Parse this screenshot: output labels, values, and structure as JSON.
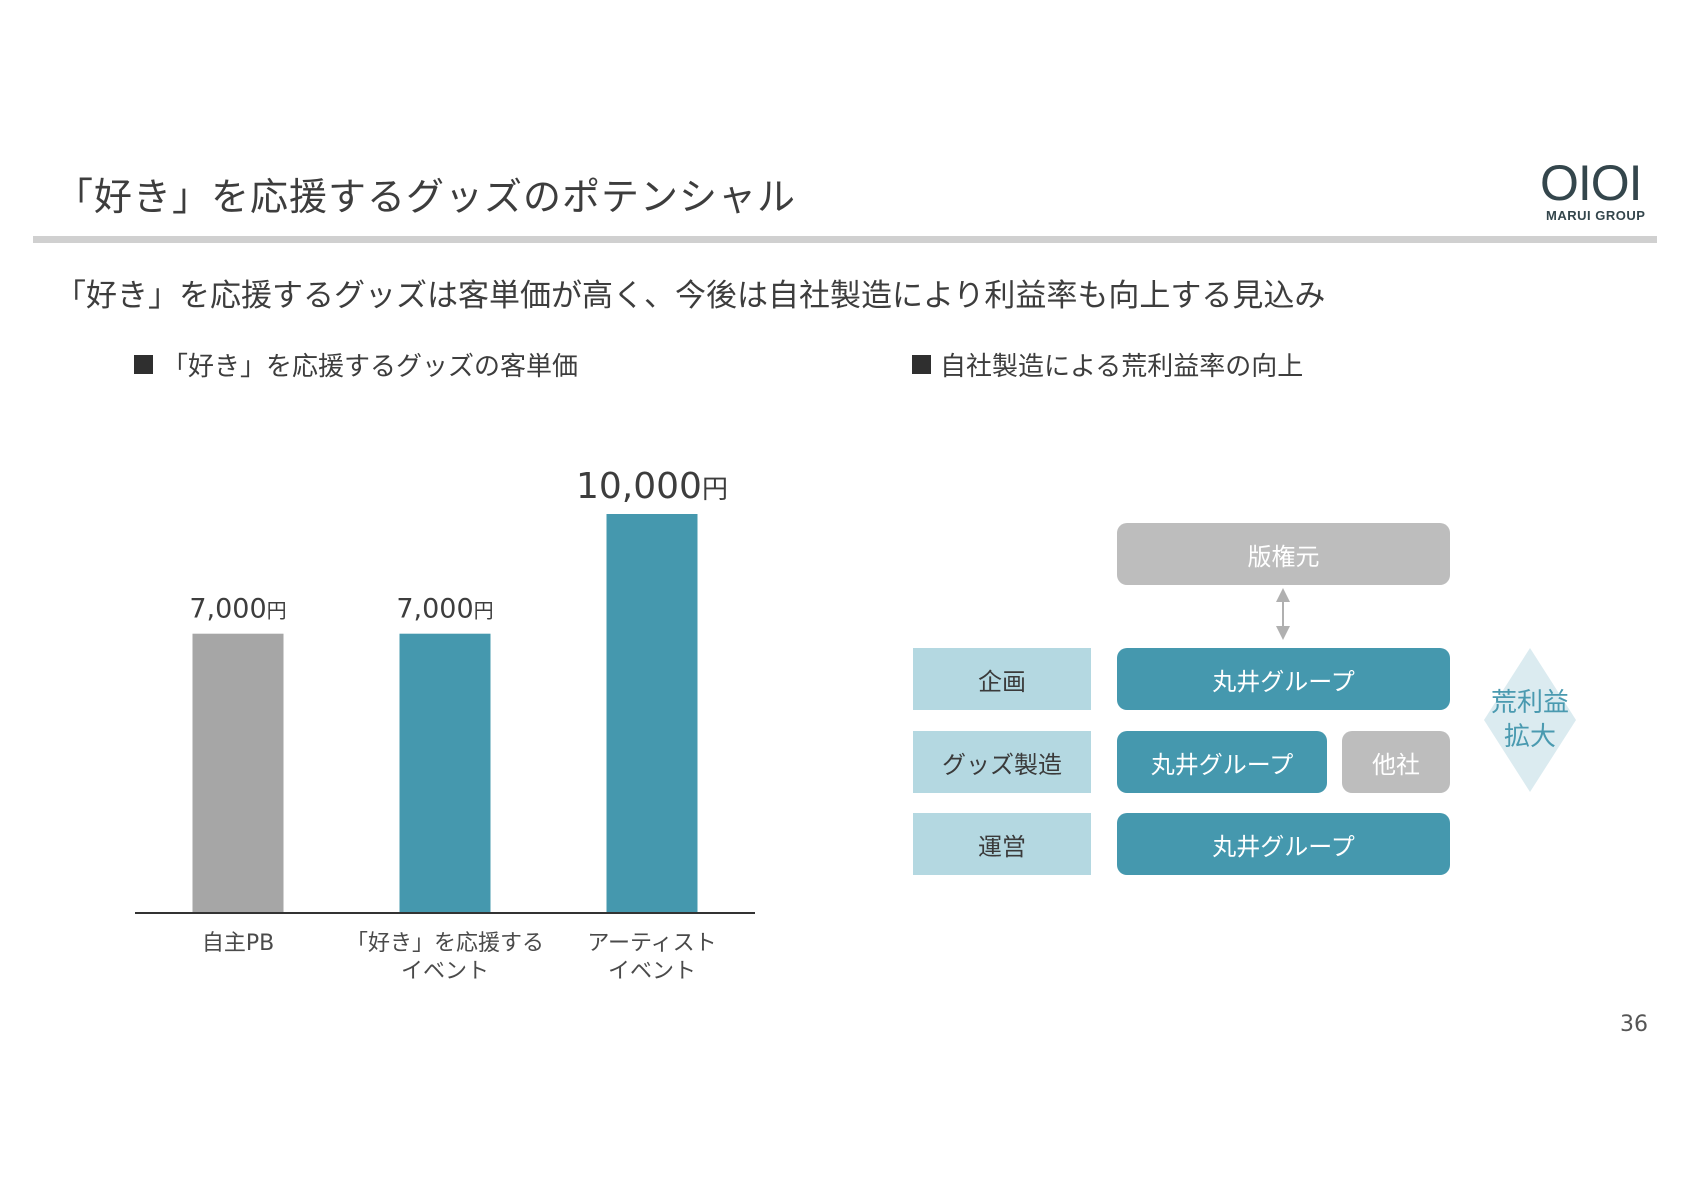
{
  "title": "「好き」を応援するグッズのポテンシャル",
  "logo": {
    "mark": "OIOI",
    "sub": "MARUI GROUP"
  },
  "lead": "「好き」を応援するグッズは客単価が高く、今後は自社製造により利益率も向上する見込み",
  "left_section": {
    "heading": "「好き」を応援するグッズの客単価"
  },
  "right_section": {
    "heading": "自社製造による荒利益率の向上"
  },
  "chart_data": {
    "type": "bar",
    "categories": [
      "自主PB",
      "「好き」を応援する イベント",
      "アーティスト イベント"
    ],
    "category_lines": [
      [
        "自主PB"
      ],
      [
        "「好き」を応援する",
        "イベント"
      ],
      [
        "アーティスト",
        "イベント"
      ]
    ],
    "values": [
      7000,
      7000,
      10000
    ],
    "value_labels": [
      {
        "num": "7,000",
        "unit": "円"
      },
      {
        "num": "7,000",
        "unit": "円"
      },
      {
        "num": "10,000",
        "unit": "円"
      }
    ],
    "colors": [
      "#a6a6a6",
      "#4598ae",
      "#4598ae"
    ],
    "ylim": [
      0,
      10000
    ],
    "grid": false,
    "title": "",
    "xlabel": "",
    "ylabel": ""
  },
  "diagram": {
    "licensor": "版権元",
    "rows": [
      {
        "label": "企画",
        "cells": [
          "丸井グループ"
        ]
      },
      {
        "label": "グッズ製造",
        "cells": [
          "丸井グループ",
          "他社"
        ]
      },
      {
        "label": "運営",
        "cells": [
          "丸井グループ"
        ]
      }
    ],
    "effect_lines": [
      "荒利益",
      "拡大"
    ],
    "colors": {
      "teal": "#4598ae",
      "light": "#b4d8e1",
      "gray": "#bdbdbd",
      "diamond": "#dbebf0"
    }
  },
  "page_number": "36"
}
